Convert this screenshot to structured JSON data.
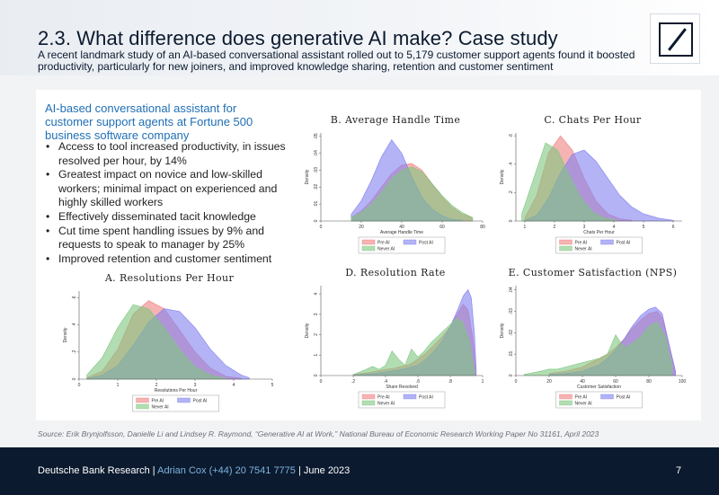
{
  "header": {
    "title": "2.3. What difference does generative AI make? Case study",
    "subtitle": "A recent landmark study of an AI-based conversational assistant rolled out to 5,179 customer support agents found it boosted productivity, particularly for new joiners, and improved knowledge sharing, retention and customer sentiment",
    "logo_icon": "deutsche-bank-logo-icon"
  },
  "left": {
    "heading": "AI-based conversational assistant for customer support agents at Fortune 500 business software company",
    "bullet_glyph": "•",
    "bullets": [
      "Access to tool increased productivity, in issues resolved per hour, by 14%",
      "Greatest impact on novice and low-skilled workers; minimal impact on experienced and highly skilled workers",
      "Effectively disseminated tacit knowledge",
      "Cut time spent handling issues by 9% and requests to speak to manager by 25%",
      "Improved retention and customer sentiment"
    ]
  },
  "colors": {
    "pre_ai": "#f08080",
    "post_ai": "#8080f0",
    "never_ai": "#7fc77f",
    "accent_blue": "#1f6fb5",
    "navy": "#0b1a2e"
  },
  "chart_data": [
    {
      "id": "A",
      "type": "area",
      "title": "A. Resolutions Per Hour",
      "xlabel": "Resolutions Per Hour",
      "ylabel": "Density",
      "xlim": [
        0,
        5
      ],
      "ylim": [
        0,
        0.65
      ],
      "xticks": [
        0,
        1,
        2,
        3,
        4,
        5
      ],
      "xtick_labels": [
        "0",
        "1",
        "2",
        "3",
        "4",
        "5"
      ],
      "yticks": [
        0,
        0.2,
        0.4,
        0.6
      ],
      "ytick_labels": [
        "0",
        ".2",
        ".4",
        ".6"
      ],
      "legend": [
        "Pre AI",
        "Post AI",
        "Never AI"
      ],
      "series": [
        {
          "name": "Pre AI",
          "x": [
            0.2,
            0.6,
            1.0,
            1.4,
            1.8,
            2.2,
            2.6,
            3.0,
            3.4,
            3.8,
            4.2
          ],
          "y": [
            0.01,
            0.06,
            0.22,
            0.48,
            0.58,
            0.52,
            0.36,
            0.2,
            0.08,
            0.02,
            0.005
          ]
        },
        {
          "name": "Post AI",
          "x": [
            0.2,
            0.6,
            1.0,
            1.4,
            1.8,
            2.2,
            2.6,
            3.0,
            3.4,
            3.8,
            4.2,
            4.4
          ],
          "y": [
            0.005,
            0.03,
            0.1,
            0.25,
            0.42,
            0.52,
            0.5,
            0.38,
            0.22,
            0.1,
            0.03,
            0.01
          ]
        },
        {
          "name": "Never AI",
          "x": [
            0.2,
            0.6,
            1.0,
            1.4,
            1.8,
            2.2,
            2.6,
            3.0,
            3.4,
            3.8
          ],
          "y": [
            0.03,
            0.16,
            0.38,
            0.55,
            0.52,
            0.38,
            0.22,
            0.09,
            0.03,
            0.005
          ]
        }
      ]
    },
    {
      "id": "B",
      "type": "area",
      "title": "B. Average Handle Time",
      "xlabel": "Average Handle Time",
      "ylabel": "Density",
      "xlim": [
        0,
        80
      ],
      "ylim": [
        0,
        0.052
      ],
      "xticks": [
        0,
        20,
        40,
        60,
        80
      ],
      "xtick_labels": [
        "0",
        "20",
        "40",
        "60",
        "80"
      ],
      "yticks": [
        0,
        0.01,
        0.02,
        0.03,
        0.04,
        0.05
      ],
      "ytick_labels": [
        "0",
        ".01",
        ".02",
        ".03",
        ".04",
        ".05"
      ],
      "legend": [
        "Pre AI",
        "Post AI",
        "Never AI"
      ],
      "series": [
        {
          "name": "Pre AI",
          "x": [
            15,
            20,
            25,
            30,
            35,
            40,
            45,
            50,
            55,
            60,
            65,
            70,
            75
          ],
          "y": [
            0.002,
            0.006,
            0.012,
            0.02,
            0.028,
            0.033,
            0.034,
            0.03,
            0.022,
            0.014,
            0.008,
            0.004,
            0.002
          ]
        },
        {
          "name": "Post AI",
          "x": [
            15,
            20,
            25,
            30,
            35,
            40,
            45,
            50,
            55,
            60,
            65,
            70
          ],
          "y": [
            0.004,
            0.012,
            0.024,
            0.038,
            0.048,
            0.04,
            0.026,
            0.014,
            0.007,
            0.003,
            0.001,
            0.0005
          ]
        },
        {
          "name": "Never AI",
          "x": [
            15,
            20,
            25,
            30,
            35,
            40,
            45,
            50,
            55,
            60,
            65,
            70,
            75
          ],
          "y": [
            0.002,
            0.005,
            0.01,
            0.017,
            0.025,
            0.03,
            0.032,
            0.029,
            0.022,
            0.015,
            0.009,
            0.005,
            0.002
          ]
        }
      ]
    },
    {
      "id": "C",
      "type": "area",
      "title": "C. Chats Per Hour",
      "xlabel": "Chats Per Hour",
      "ylabel": "Density",
      "xlim": [
        0.7,
        6.3
      ],
      "ylim": [
        0,
        0.62
      ],
      "xticks": [
        1,
        2,
        3,
        4,
        5,
        6
      ],
      "xtick_labels": [
        "1",
        "2",
        "3",
        "4",
        "5",
        "6"
      ],
      "yticks": [
        0,
        0.2,
        0.4,
        0.6
      ],
      "ytick_labels": [
        "0",
        ".2",
        ".4",
        ".6"
      ],
      "legend": [
        "Pre AI",
        "Post AI",
        "Never AI"
      ],
      "series": [
        {
          "name": "Pre AI",
          "x": [
            1.0,
            1.4,
            1.8,
            2.2,
            2.6,
            3.0,
            3.4,
            3.8,
            4.2,
            4.6
          ],
          "y": [
            0.02,
            0.18,
            0.48,
            0.6,
            0.5,
            0.3,
            0.14,
            0.05,
            0.015,
            0.005
          ]
        },
        {
          "name": "Post AI",
          "x": [
            1.0,
            1.4,
            1.8,
            2.2,
            2.6,
            3.0,
            3.4,
            3.8,
            4.2,
            4.6,
            5.0,
            5.5,
            6.0
          ],
          "y": [
            0.005,
            0.04,
            0.16,
            0.34,
            0.47,
            0.5,
            0.42,
            0.3,
            0.18,
            0.1,
            0.05,
            0.02,
            0.005
          ]
        },
        {
          "name": "Never AI",
          "x": [
            0.9,
            1.3,
            1.7,
            2.1,
            2.5,
            2.9,
            3.3,
            3.7,
            4.1
          ],
          "y": [
            0.05,
            0.3,
            0.55,
            0.5,
            0.32,
            0.16,
            0.06,
            0.02,
            0.005
          ]
        }
      ]
    },
    {
      "id": "D",
      "type": "area",
      "title": "D. Resolution Rate",
      "xlabel": "Share Resolved",
      "ylabel": "Density",
      "xlim": [
        0,
        1
      ],
      "ylim": [
        0,
        4.4
      ],
      "xticks": [
        0,
        0.2,
        0.4,
        0.6,
        0.8,
        1
      ],
      "xtick_labels": [
        "0",
        ".2",
        ".4",
        ".6",
        ".8",
        "1"
      ],
      "yticks": [
        0,
        1,
        2,
        3,
        4
      ],
      "ytick_labels": [
        "0",
        "1",
        "2",
        "3",
        "4"
      ],
      "legend": [
        "Pre AI",
        "Post AI",
        "Never AI"
      ],
      "series": [
        {
          "name": "Pre AI",
          "x": [
            0.2,
            0.3,
            0.4,
            0.45,
            0.5,
            0.55,
            0.6,
            0.65,
            0.7,
            0.75,
            0.8,
            0.85,
            0.88,
            0.91,
            0.94,
            0.96
          ],
          "y": [
            0.05,
            0.15,
            0.3,
            0.35,
            0.45,
            0.55,
            0.8,
            1.1,
            1.5,
            1.9,
            2.4,
            3.1,
            3.5,
            3.2,
            1.8,
            0.2
          ]
        },
        {
          "name": "Post AI",
          "x": [
            0.2,
            0.3,
            0.4,
            0.5,
            0.6,
            0.65,
            0.7,
            0.75,
            0.8,
            0.85,
            0.88,
            0.91,
            0.93,
            0.95,
            0.96
          ],
          "y": [
            0.02,
            0.08,
            0.18,
            0.3,
            0.5,
            0.8,
            1.2,
            1.7,
            2.4,
            3.3,
            3.9,
            4.2,
            3.8,
            2.0,
            0.3
          ]
        },
        {
          "name": "Never AI",
          "x": [
            0.2,
            0.28,
            0.32,
            0.36,
            0.4,
            0.44,
            0.48,
            0.52,
            0.56,
            0.6,
            0.64,
            0.68,
            0.72,
            0.76,
            0.8,
            0.84,
            0.88,
            0.92,
            0.95
          ],
          "y": [
            0.05,
            0.3,
            0.45,
            0.3,
            0.5,
            1.2,
            0.8,
            0.5,
            1.3,
            0.9,
            1.2,
            1.6,
            1.9,
            2.2,
            2.5,
            2.8,
            2.6,
            1.6,
            0.2
          ]
        }
      ]
    },
    {
      "id": "E",
      "type": "area",
      "title": "E. Customer Satisfaction (NPS)",
      "xlabel": "Customer Satisfaction",
      "ylabel": "Density",
      "xlim": [
        0,
        100
      ],
      "ylim": [
        0,
        0.042
      ],
      "xticks": [
        0,
        20,
        40,
        60,
        80,
        100
      ],
      "xtick_labels": [
        "0",
        "20",
        "40",
        "60",
        "80",
        "100"
      ],
      "yticks": [
        0,
        0.01,
        0.02,
        0.03,
        0.04
      ],
      "ytick_labels": [
        "0",
        ".01",
        ".02",
        ".03",
        ".04"
      ],
      "legend": [
        "Pre AI",
        "Post AI",
        "Never AI"
      ],
      "series": [
        {
          "name": "Pre AI",
          "x": [
            20,
            30,
            40,
            45,
            50,
            55,
            60,
            65,
            70,
            75,
            80,
            85,
            88,
            92,
            96
          ],
          "y": [
            0.001,
            0.002,
            0.004,
            0.006,
            0.008,
            0.01,
            0.013,
            0.017,
            0.022,
            0.026,
            0.029,
            0.03,
            0.027,
            0.015,
            0.002
          ]
        },
        {
          "name": "Post AI",
          "x": [
            20,
            30,
            40,
            50,
            55,
            60,
            65,
            70,
            75,
            80,
            84,
            88,
            92,
            96
          ],
          "y": [
            0.0005,
            0.001,
            0.002,
            0.005,
            0.008,
            0.012,
            0.017,
            0.023,
            0.028,
            0.031,
            0.032,
            0.029,
            0.015,
            0.002
          ]
        },
        {
          "name": "Never AI",
          "x": [
            5,
            15,
            20,
            25,
            30,
            35,
            40,
            45,
            50,
            55,
            60,
            65,
            70,
            75,
            80,
            85,
            90,
            94
          ],
          "y": [
            0.0005,
            0.002,
            0.003,
            0.003,
            0.004,
            0.005,
            0.006,
            0.007,
            0.008,
            0.01,
            0.019,
            0.013,
            0.015,
            0.018,
            0.023,
            0.025,
            0.018,
            0.004
          ]
        }
      ]
    }
  ],
  "source": "Source: Erik Brynjolfsson, Danielle Li and Lindsey R. Raymond, “Generative AI at Work,” National Bureau of Economic Research Working Paper No 31161, April 2023",
  "footer": {
    "org": "Deutsche Bank Research",
    "sep1": "|",
    "contact": "Adrian Cox (+44) 20 7541 7775",
    "sep2": "|",
    "date": "June 2023",
    "page": "7"
  }
}
